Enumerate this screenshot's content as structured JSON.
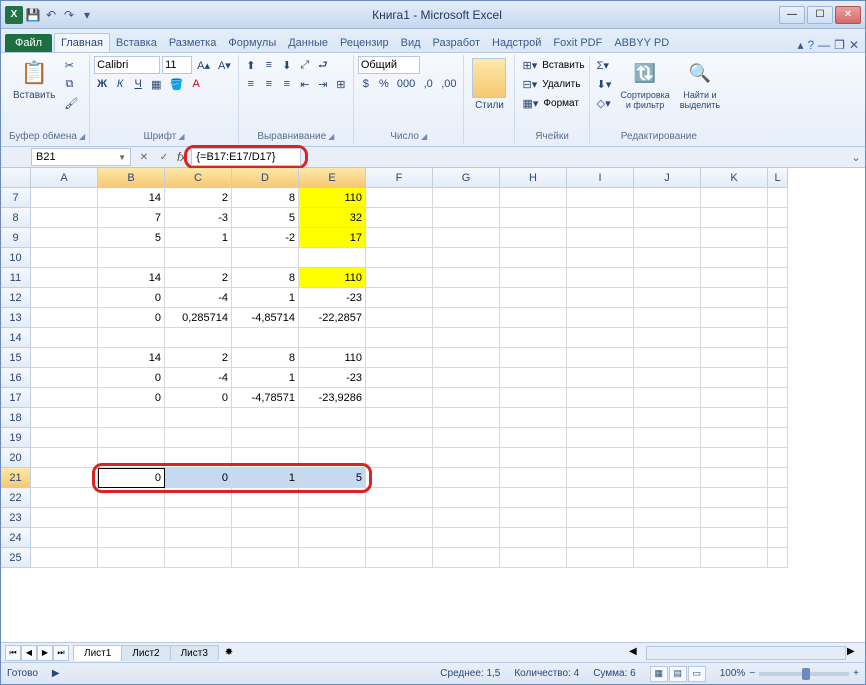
{
  "title": "Книга1 - Microsoft Excel",
  "tabs": {
    "file": "Файл",
    "items": [
      "Главная",
      "Вставка",
      "Разметка",
      "Формулы",
      "Данные",
      "Рецензир",
      "Вид",
      "Разработ",
      "Надстрой",
      "Foxit PDF",
      "ABBYY PD"
    ],
    "active": 0
  },
  "ribbon": {
    "clipboard": {
      "paste": "Вставить",
      "label": "Буфер обмена"
    },
    "font": {
      "name": "Calibri",
      "size": "11",
      "bold": "Ж",
      "italic": "К",
      "underline": "Ч",
      "label": "Шрифт"
    },
    "align": {
      "wrap": "▤",
      "merge": "⊞",
      "label": "Выравнивание"
    },
    "number": {
      "format": "Общий",
      "label": "Число"
    },
    "styles": {
      "btn": "Стили"
    },
    "cells": {
      "insert": "Вставить",
      "delete": "Удалить",
      "format": "Формат",
      "label": "Ячейки"
    },
    "editing": {
      "sort": "Сортировка\nи фильтр",
      "find": "Найти и\nвыделить",
      "label": "Редактирование"
    }
  },
  "namebox": "B21",
  "formula": "{=B17:E17/D17}",
  "columns": [
    "A",
    "B",
    "C",
    "D",
    "E",
    "F",
    "G",
    "H",
    "I",
    "J",
    "K",
    "L"
  ],
  "rows": [
    7,
    8,
    9,
    10,
    11,
    12,
    13,
    14,
    15,
    16,
    17,
    18,
    19,
    20,
    21,
    22,
    23,
    24,
    25
  ],
  "data": {
    "7": {
      "B": "14",
      "C": "2",
      "D": "8",
      "E": "110"
    },
    "8": {
      "B": "7",
      "C": "-3",
      "D": "5",
      "E": "32"
    },
    "9": {
      "B": "5",
      "C": "1",
      "D": "-2",
      "E": "17"
    },
    "11": {
      "B": "14",
      "C": "2",
      "D": "8",
      "E": "110"
    },
    "12": {
      "B": "0",
      "C": "-4",
      "D": "1",
      "E": "-23"
    },
    "13": {
      "B": "0",
      "C": "0,285714",
      "D": "-4,85714",
      "E": "-22,2857"
    },
    "15": {
      "B": "14",
      "C": "2",
      "D": "8",
      "E": "110"
    },
    "16": {
      "B": "0",
      "C": "-4",
      "D": "1",
      "E": "-23"
    },
    "17": {
      "B": "0",
      "C": "0",
      "D": "-4,78571",
      "E": "-23,9286"
    },
    "21": {
      "B": "0",
      "C": "0",
      "D": "1",
      "E": "5"
    }
  },
  "yellowCells": [
    "E7",
    "E8",
    "E9",
    "E11"
  ],
  "selection": {
    "row": 21,
    "cols": [
      "B",
      "C",
      "D",
      "E"
    ],
    "active": "B21"
  },
  "sheets": [
    "Лист1",
    "Лист2",
    "Лист3"
  ],
  "activeSheet": 0,
  "status": {
    "ready": "Готово",
    "avg_label": "Среднее:",
    "avg": "1,5",
    "count_label": "Количество:",
    "count": "4",
    "sum_label": "Сумма:",
    "sum": "6",
    "zoom": "100%"
  },
  "colors": {
    "highlight": "#d22",
    "yellow": "#ffff00",
    "selblue": "#c5d9f1"
  }
}
